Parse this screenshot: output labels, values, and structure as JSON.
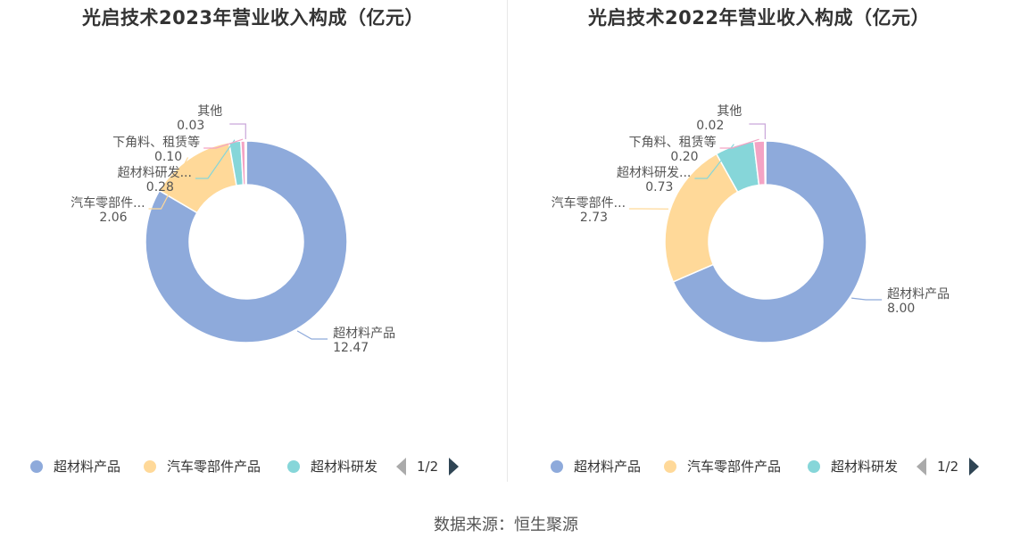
{
  "chart_data": [
    {
      "type": "pie",
      "variant": "donut",
      "title": "光启技术2023年营业收入构成（亿元）",
      "categories": [
        "超材料产品",
        "汽车零部件产品",
        "超材料研发",
        "下角料、租赁等",
        "其他"
      ],
      "values": [
        12.47,
        2.06,
        0.28,
        0.1,
        0.03
      ],
      "labels": [
        "超材料产品",
        "汽车零部件...",
        "超材料研发...",
        "下角料、租赁等",
        "其他"
      ],
      "value_labels": [
        "12.47",
        "2.06",
        "0.28",
        "0.10",
        "0.03"
      ],
      "colors": [
        "#8eaadb",
        "#ffd999",
        "#86d6d9",
        "#f4a3c4",
        "#c9a6d9"
      ],
      "legend": {
        "placement": "bottom",
        "visible_items": [
          "超材料产品",
          "汽车零部件产品",
          "超材料研发"
        ],
        "page": "1/2"
      }
    },
    {
      "type": "pie",
      "variant": "donut",
      "title": "光启技术2022年营业收入构成（亿元）",
      "categories": [
        "超材料产品",
        "汽车零部件产品",
        "超材料研发",
        "下角料、租赁等",
        "其他"
      ],
      "values": [
        8.0,
        2.73,
        0.73,
        0.2,
        0.02
      ],
      "labels": [
        "超材料产品",
        "汽车零部件...",
        "超材料研发...",
        "下角料、租赁等",
        "其他"
      ],
      "value_labels": [
        "8.00",
        "2.73",
        "0.73",
        "0.20",
        "0.02"
      ],
      "colors": [
        "#8eaadb",
        "#ffd999",
        "#86d6d9",
        "#f4a3c4",
        "#c9a6d9"
      ],
      "legend": {
        "placement": "bottom",
        "visible_items": [
          "超材料产品",
          "汽车零部件产品",
          "超材料研发"
        ],
        "page": "1/2"
      }
    }
  ],
  "footer": {
    "source": "数据来源：恒生聚源"
  }
}
